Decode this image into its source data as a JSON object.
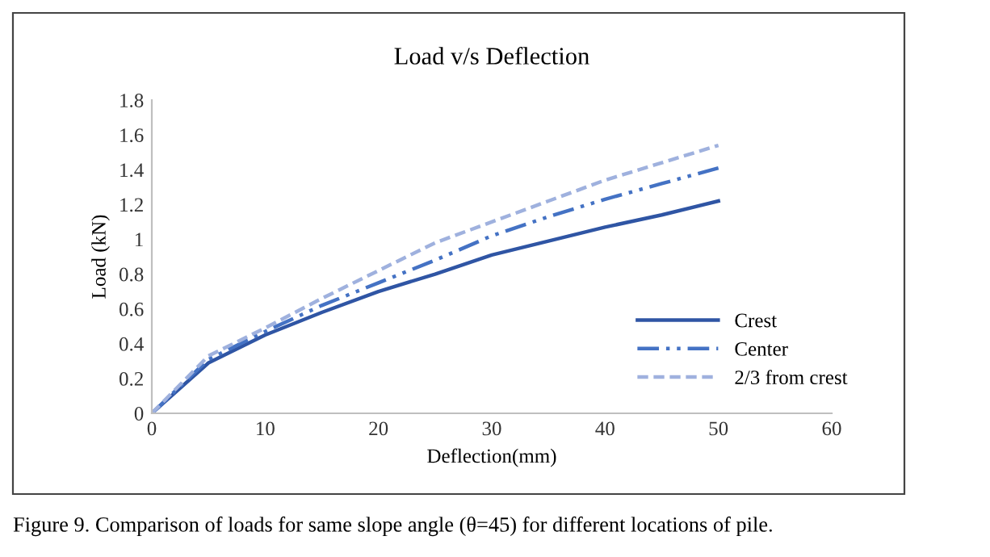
{
  "chart_data": {
    "type": "line",
    "title": "Load v/s Deflection",
    "xlabel": "Deflection(mm)",
    "ylabel": "Load (kN)",
    "x": [
      0,
      5,
      10,
      15,
      20,
      25,
      30,
      35,
      40,
      45,
      50
    ],
    "series": [
      {
        "name": "Crest",
        "color": "#2f55a4",
        "line_style": "solid",
        "values": [
          0,
          0.29,
          0.45,
          0.58,
          0.7,
          0.8,
          0.91,
          0.99,
          1.07,
          1.14,
          1.22
        ]
      },
      {
        "name": "Center",
        "color": "#4472c4",
        "line_style": "dashdotdot",
        "values": [
          0,
          0.31,
          0.47,
          0.62,
          0.75,
          0.88,
          1.02,
          1.13,
          1.23,
          1.32,
          1.41
        ]
      },
      {
        "name": "2/3 from crest",
        "color": "#9fb1de",
        "line_style": "dashed",
        "values": [
          0,
          0.33,
          0.49,
          0.66,
          0.82,
          0.98,
          1.1,
          1.22,
          1.34,
          1.44,
          1.54
        ]
      }
    ],
    "xlim": [
      0,
      60
    ],
    "xticks": [
      0,
      10,
      20,
      30,
      40,
      50,
      60
    ],
    "ylim": [
      0,
      1.8
    ],
    "yticks": [
      0,
      0.2,
      0.4,
      0.6,
      0.8,
      1,
      1.2,
      1.4,
      1.6,
      1.8
    ],
    "grid": false,
    "legend": "right",
    "marker": "none",
    "annotations": [
      "Figure 9. Comparison of loads for same slope angle (θ=45) for different locations of pile."
    ]
  }
}
